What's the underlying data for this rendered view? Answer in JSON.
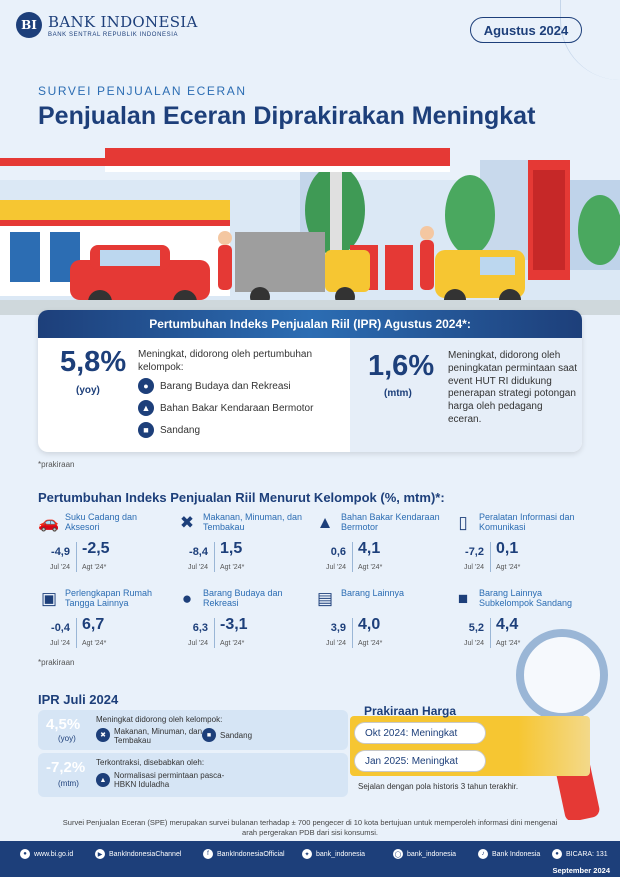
{
  "header": {
    "logo_mark": "BI",
    "bank_name": "BANK INDONESIA",
    "bank_sub": "BANK SENTRAL REPUBLIK INDONESIA",
    "period": "Agustus 2024"
  },
  "title": {
    "survey_label": "SURVEI PENJUALAN ECERAN",
    "headline": "Penjualan Eceran Diprakirakan Meningkat"
  },
  "ipr": {
    "heading": "Pertumbuhan Indeks Penjualan Riil (IPR) Agustus 2024*:",
    "yoy_value": "5,8%",
    "yoy_label": "(yoy)",
    "yoy_desc": "Meningkat, didorong oleh pertumbuhan kelompok:",
    "groups": [
      {
        "label": "Barang Budaya dan Rekreasi",
        "icon": "drop-icon"
      },
      {
        "label": "Bahan Bakar Kendaraan Bermotor",
        "icon": "fuel-nozzle-icon"
      },
      {
        "label": "Sandang",
        "icon": "shirt-icon"
      }
    ],
    "mtm_value": "1,6%",
    "mtm_label": "(mtm)",
    "mtm_desc": "Meningkat, didorong oleh peningkatan permintaan saat event HUT RI didukung penerapan strategi potongan harga oleh pedagang eceran."
  },
  "footnote_1": "*prakiraan",
  "groups_section": {
    "title": "Pertumbuhan Indeks Penjualan Riil Menurut Kelompok (%, mtm)*:",
    "jul_caption": "Jul '24",
    "agt_caption": "Agt '24*",
    "items": [
      {
        "label": "Suku Cadang dan Aksesori",
        "jul": "-4,9",
        "agt": "-2,5",
        "icon": "car-icon"
      },
      {
        "label": "Makanan, Minuman, dan Tembakau",
        "jul": "-8,4",
        "agt": "1,5",
        "icon": "utensils-icon"
      },
      {
        "label": "Bahan Bakar Kendaraan Bermotor",
        "jul": "0,6",
        "agt": "4,1",
        "icon": "fuel-nozzle-icon"
      },
      {
        "label": "Peralatan Informasi dan Komunikasi",
        "jul": "-7,2",
        "agt": "0,1",
        "icon": "phone-icon"
      },
      {
        "label": "Perlengkapan Rumah Tangga Lainnya",
        "jul": "-0,4",
        "agt": "6,7",
        "icon": "sofa-icon"
      },
      {
        "label": "Barang Budaya dan Rekreasi",
        "jul": "6,3",
        "agt": "-3,1",
        "icon": "drop-icon"
      },
      {
        "label": "Barang Lainnya",
        "jul": "3,9",
        "agt": "4,0",
        "icon": "shopping-bag-icon"
      },
      {
        "label": "Barang Lainnya Subkelompok Sandang",
        "jul": "5,2",
        "agt": "4,4",
        "icon": "shirt-icon"
      }
    ]
  },
  "footnote_2": "*prakiraan",
  "juli": {
    "title": "IPR Juli 2024",
    "yoy_value": "4,5%",
    "yoy_label": "(yoy)",
    "yoy_text": "Meningkat didorong oleh kelompok:",
    "yoy_group_1": "Makanan, Minuman, dan Tembakau",
    "yoy_group_2": "Sandang",
    "mtm_value": "-7,2%",
    "mtm_label": "(mtm)",
    "mtm_text": "Terkontraksi, disebabkan oleh:",
    "mtm_reason": "Normalisasi permintaan pasca-HBKN Iduladha"
  },
  "harga": {
    "title": "Prakiraan Harga",
    "okt": "Okt 2024: Meningkat",
    "jan": "Jan 2025: Meningkat",
    "note": "Sejalan dengan pola historis 3 tahun terakhir."
  },
  "bottom_note": "Survei Penjualan Eceran (SPE) merupakan survei bulanan terhadap ± 700 pengecer di 10 kota bertujuan untuk memperoleh informasi dini mengenai arah pergerakan PDB dari sisi konsumsi.",
  "footer": {
    "web": "www.bi.go.id",
    "youtube": "BankIndonesiaChannel",
    "facebook": "BankIndonesiaOfficial",
    "twitter": "bank_indonesia",
    "instagram": "bank_indonesia",
    "tiktok": "Bank Indonesia",
    "bicara": "BICARA: 131",
    "date": "September 2024"
  },
  "colors": {
    "navy": "#1d3f7a",
    "blue": "#2c6db3",
    "red": "#e53935",
    "yellow": "#f6c632",
    "background": "#e9f1fa"
  }
}
